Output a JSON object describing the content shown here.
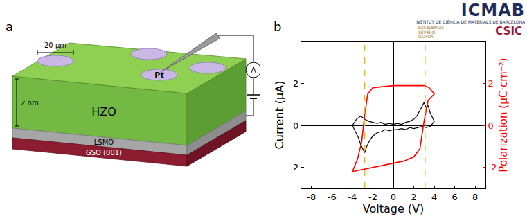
{
  "panel_letters": [
    "a",
    "b"
  ],
  "panel_a": {
    "scale_bar": "20 μm",
    "electrode": "Pt",
    "thickness": "2 nm",
    "layers": [
      "HZO",
      "LSMO",
      "GSO (001)"
    ],
    "meter": "A"
  },
  "logos": {
    "icmab": "ICMAB",
    "institute": "INSTITUT DE CIÈNCIA DE MATERIALS DE BARCELONA",
    "severo_ochoa": [
      "EXCELENCIA",
      "SEVERO",
      "OCHOA"
    ],
    "csic": "CSIC"
  },
  "chart_data": {
    "type": "line",
    "x_label": "Voltage (V)",
    "y_label": "Current (μA)",
    "y2_label": "Polarization (μC·cm⁻²)",
    "xlim": [
      -9,
      9
    ],
    "xticks": [
      -8,
      -6,
      -4,
      -2,
      0,
      2,
      4,
      6,
      8
    ],
    "ylim": [
      -3,
      4
    ],
    "yticks": [
      -2,
      0,
      2
    ],
    "y2lim": [
      -3,
      4
    ],
    "y2ticks": [
      -2,
      0,
      2
    ],
    "series": [
      {
        "color": "#000000",
        "x": [
          0,
          0.4,
          0.8,
          1.2,
          1.6,
          2.0,
          2.3,
          2.6,
          2.8,
          3.0,
          3.2,
          3.4,
          3.6,
          3.8,
          4.0,
          3.6,
          3.2,
          2.8,
          2.4,
          2.0,
          1.6,
          1.2,
          0.8,
          0.4,
          0,
          -0.4,
          -0.8,
          -1.2,
          -1.6,
          -2.0,
          -2.3,
          -2.6,
          -2.8,
          -3.0,
          -3.2,
          -3.4,
          -3.6,
          -3.8,
          -4.0,
          -3.6,
          -3.2,
          -2.8,
          -2.4,
          -2.0,
          -1.6,
          -1.2,
          -0.8,
          -0.4,
          0
        ],
        "values": [
          0.05,
          0.1,
          0.05,
          0.15,
          0.2,
          0.3,
          0.45,
          0.7,
          0.9,
          1.1,
          0.85,
          0.95,
          0.6,
          0.4,
          0.2,
          -0.05,
          -0.1,
          -0.05,
          -0.1,
          -0.15,
          -0.1,
          -0.2,
          -0.15,
          -0.2,
          -0.2,
          -0.25,
          -0.2,
          -0.3,
          -0.35,
          -0.5,
          -0.7,
          -1.0,
          -1.3,
          -1.1,
          -0.9,
          -0.6,
          -0.4,
          -0.2,
          0.0,
          0.3,
          0.45,
          0.3,
          0.2,
          0.15,
          0.1,
          0.15,
          0.05,
          0.1,
          0.05
        ]
      },
      {
        "color": "#ff0000",
        "axis": "y2",
        "x": [
          -4,
          -3,
          -2,
          -1,
          0,
          1,
          2,
          2.6,
          3.0,
          3.4,
          4,
          3.5,
          3,
          2,
          1,
          0,
          -1,
          -2,
          -2.5,
          -2.8,
          -3.1,
          -3.5,
          -4
        ],
        "values": [
          -2.2,
          -2.1,
          -2.0,
          -1.9,
          -1.8,
          -1.7,
          -1.5,
          -1.1,
          0.2,
          1.2,
          1.5,
          1.8,
          1.9,
          1.9,
          1.9,
          1.9,
          1.85,
          1.8,
          1.5,
          0.5,
          -0.8,
          -1.6,
          -2.2
        ]
      }
    ],
    "vlines": {
      "values": [
        -2.8,
        3.1
      ],
      "color": "#f2b21d",
      "line_style": "dashed"
    }
  }
}
